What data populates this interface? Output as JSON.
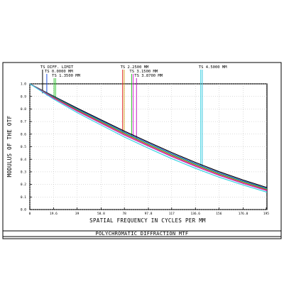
{
  "caption": "POLYCHROMATIC DIFFRACTION MTF",
  "chart_data": {
    "type": "line",
    "xlabel": "SPATIAL FREQUENCY IN CYCLES PER MM",
    "ylabel": "MODULUS OF THE OTF",
    "xlim": [
      0,
      195.6
    ],
    "ylim": [
      0,
      1.0
    ],
    "x_ticks": [
      0,
      19.6,
      39,
      58.8,
      78,
      97.8,
      117,
      136.6,
      156,
      176.0,
      195
    ],
    "x_tick_labels": [
      "0",
      "19.6",
      "39",
      "58.8",
      "78",
      "97.8",
      "117",
      "136.6",
      "156",
      "176.0",
      "195"
    ],
    "y_ticks": [
      0,
      0.1,
      0.2,
      0.3,
      0.4,
      0.5,
      0.6,
      0.7,
      0.8,
      0.9,
      1.0
    ],
    "y_tick_labels": [
      "0.0",
      "0.1",
      "0.2",
      "0.3",
      "0.4",
      "0.5",
      "0.6",
      "0.7",
      "0.8",
      "0.9",
      "1.0"
    ],
    "grid": true,
    "legend": [
      {
        "text": "TS DIFF. LIMIT",
        "x": 10.5,
        "colors": [
          "#000000"
        ]
      },
      {
        "text": "TS 0.0000 MM",
        "x": 14.0,
        "colors": [
          "#2050e0"
        ]
      },
      {
        "text": "TS 1.3500 MM",
        "x": 20.0,
        "colors": [
          "#30c030",
          "#40d040"
        ]
      },
      {
        "text": "TS 2.2500 MM",
        "x": 76.5,
        "colors": [
          "#e03030",
          "#d0a020"
        ]
      },
      {
        "text": "TS 3.1500 MM",
        "x": 84.0,
        "colors": [
          "#30c030",
          "#e020e0"
        ]
      },
      {
        "text": "TS 3.8700 MM",
        "x": 88.0,
        "colors": [
          "#c020c0"
        ]
      },
      {
        "text": "TS 4.5000 MM",
        "x": 141.0,
        "colors": [
          "#30d0e0",
          "#40c8e0"
        ]
      }
    ],
    "series": [
      {
        "color": "#000000",
        "x": [
          0,
          19.6,
          39,
          58.8,
          78,
          97.8,
          117,
          136.6,
          156,
          176,
          195.6
        ],
        "y": [
          1.0,
          0.902,
          0.807,
          0.714,
          0.624,
          0.537,
          0.454,
          0.375,
          0.302,
          0.235,
          0.175
        ]
      },
      {
        "color": "#2050e0",
        "x": [
          0,
          19.6,
          39,
          58.8,
          78,
          97.8,
          117,
          136.6,
          156,
          176,
          195.6
        ],
        "y": [
          1.0,
          0.898,
          0.801,
          0.707,
          0.616,
          0.528,
          0.445,
          0.366,
          0.293,
          0.227,
          0.168
        ]
      },
      {
        "color": "#30c030",
        "x": [
          0,
          19.6,
          39,
          58.8,
          78,
          97.8,
          117,
          136.6,
          156,
          176,
          195.6
        ],
        "y": [
          1.0,
          0.894,
          0.795,
          0.7,
          0.608,
          0.52,
          0.437,
          0.359,
          0.286,
          0.221,
          0.162
        ]
      },
      {
        "color": "#e03030",
        "x": [
          0,
          19.6,
          39,
          58.8,
          78,
          97.8,
          117,
          136.6,
          156,
          176,
          195.6
        ],
        "y": [
          1.0,
          0.89,
          0.789,
          0.693,
          0.6,
          0.512,
          0.429,
          0.351,
          0.279,
          0.214,
          0.156
        ]
      },
      {
        "color": "#c020c0",
        "x": [
          0,
          19.6,
          39,
          58.8,
          78,
          97.8,
          117,
          136.6,
          156,
          176,
          195.6
        ],
        "y": [
          1.0,
          0.886,
          0.783,
          0.686,
          0.592,
          0.504,
          0.421,
          0.343,
          0.272,
          0.207,
          0.15
        ]
      },
      {
        "color": "#30d0e0",
        "x": [
          0,
          19.6,
          39,
          58.8,
          78,
          97.8,
          117,
          136.6,
          156,
          176,
          195.6
        ],
        "y": [
          1.0,
          0.878,
          0.771,
          0.672,
          0.577,
          0.488,
          0.405,
          0.328,
          0.258,
          0.195,
          0.138
        ]
      }
    ]
  }
}
